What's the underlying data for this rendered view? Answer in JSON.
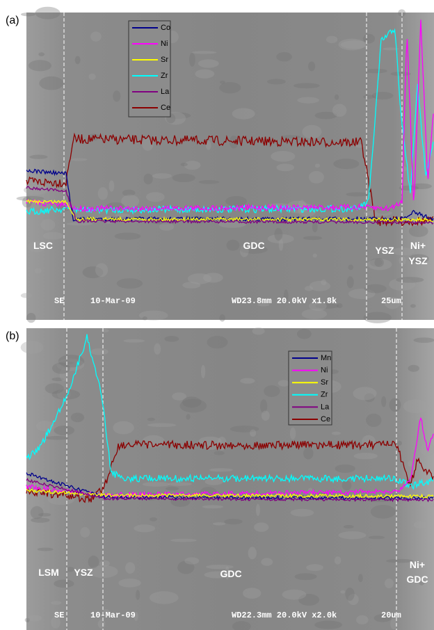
{
  "panels": [
    {
      "label": "(a)",
      "legend": [
        {
          "name": "Co",
          "color": "#00008b"
        },
        {
          "name": "Ni",
          "color": "#ff00ff"
        },
        {
          "name": "Sr",
          "color": "#ffff00"
        },
        {
          "name": "Zr",
          "color": "#00ffff"
        },
        {
          "name": "La",
          "color": "#800080"
        },
        {
          "name": "Ce",
          "color": "#8b0000"
        }
      ],
      "regions": [
        "LSC",
        "GDC",
        "YSZ",
        [
          "Ni+",
          "YSZ"
        ]
      ],
      "info": {
        "mode": "SE",
        "date": "10-Mar-09",
        "settings": "WD23.8mm 20.0kV x1.8k",
        "scale": "25um"
      }
    },
    {
      "label": "(b)",
      "legend": [
        {
          "name": "Mn",
          "color": "#00008b"
        },
        {
          "name": "Ni",
          "color": "#ff00ff"
        },
        {
          "name": "Sr",
          "color": "#ffff00"
        },
        {
          "name": "Zr",
          "color": "#00ffff"
        },
        {
          "name": "La",
          "color": "#800080"
        },
        {
          "name": "Ce",
          "color": "#8b0000"
        }
      ],
      "regions": [
        "LSM",
        "YSZ",
        "GDC",
        [
          "Ni+",
          "GDC"
        ]
      ],
      "info": {
        "mode": "SE",
        "date": "10-Mar-09",
        "settings": "WD22.3mm 20.0kV x2.0k",
        "scale": "20um"
      }
    }
  ]
}
